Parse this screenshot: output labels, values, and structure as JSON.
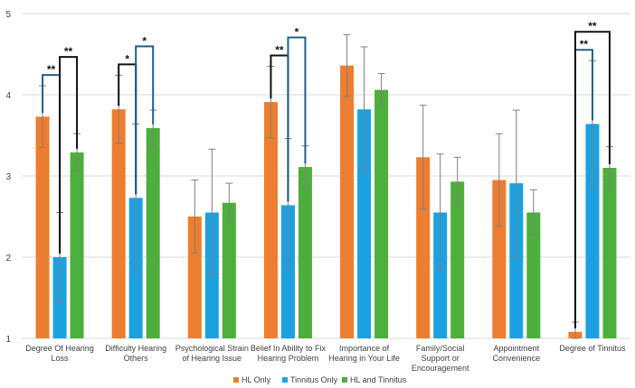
{
  "chart_data": {
    "type": "bar",
    "title": "",
    "xlabel": "",
    "ylabel": "",
    "ylim": [
      1,
      5
    ],
    "yticks": [
      1,
      2,
      3,
      4,
      5
    ],
    "grid": true,
    "legend_position": "bottom-center",
    "categories": [
      [
        "Degree Of Hearing",
        "Loss"
      ],
      [
        "Difficulty Hearing",
        "Others"
      ],
      [
        "Psychological Strain",
        "of Hearing Issue"
      ],
      [
        "Belief In Ability to Fix",
        "Hearing Problem"
      ],
      [
        "Importance of",
        "Hearing in Your Life"
      ],
      [
        "Family/Social",
        "Support or",
        "Encouragement"
      ],
      [
        "Appointment",
        "Convenience"
      ],
      [
        "Degree of Tinnitus"
      ]
    ],
    "series": [
      {
        "name": "HL Only",
        "color": "#ED7D31",
        "values": [
          3.73,
          3.82,
          2.5,
          3.91,
          4.36,
          3.23,
          2.95,
          1.08
        ],
        "errors": [
          0.38,
          0.42,
          0.45,
          0.44,
          0.38,
          0.64,
          0.57,
          0.12
        ]
      },
      {
        "name": "Tinnitus Only",
        "color": "#1BA1E2",
        "values": [
          2.0,
          2.73,
          2.55,
          2.64,
          3.82,
          2.55,
          2.91,
          3.64
        ],
        "errors": [
          0.55,
          0.91,
          0.78,
          0.82,
          0.77,
          0.72,
          0.9,
          0.78
        ]
      },
      {
        "name": "HL and Tinnitus",
        "color": "#4CAF3B",
        "values": [
          3.29,
          3.59,
          2.67,
          3.11,
          4.06,
          2.93,
          2.55,
          3.1
        ],
        "errors": [
          0.23,
          0.22,
          0.24,
          0.26,
          0.2,
          0.3,
          0.28,
          0.26
        ]
      }
    ],
    "significance": [
      {
        "category": 0,
        "from": 0,
        "to": 1,
        "label": "**",
        "color": "#1F5F8B",
        "level": 1
      },
      {
        "category": 0,
        "from": 1,
        "to": 2,
        "label": "**",
        "color": "#111111",
        "level": 2
      },
      {
        "category": 1,
        "from": 0,
        "to": 1,
        "label": "*",
        "color": "#111111",
        "level": 1
      },
      {
        "category": 1,
        "from": 1,
        "to": 2,
        "label": "*",
        "color": "#1F5F8B",
        "level": 2
      },
      {
        "category": 3,
        "from": 0,
        "to": 1,
        "label": "**",
        "color": "#111111",
        "level": 1
      },
      {
        "category": 3,
        "from": 1,
        "to": 2,
        "label": "*",
        "color": "#1F5F8B",
        "level": 2
      },
      {
        "category": 7,
        "from": 0,
        "to": 1,
        "label": "**",
        "color": "#1F5F8B",
        "level": 1
      },
      {
        "category": 7,
        "from": 0,
        "to": 2,
        "label": "**",
        "color": "#111111",
        "level": 2
      }
    ]
  }
}
